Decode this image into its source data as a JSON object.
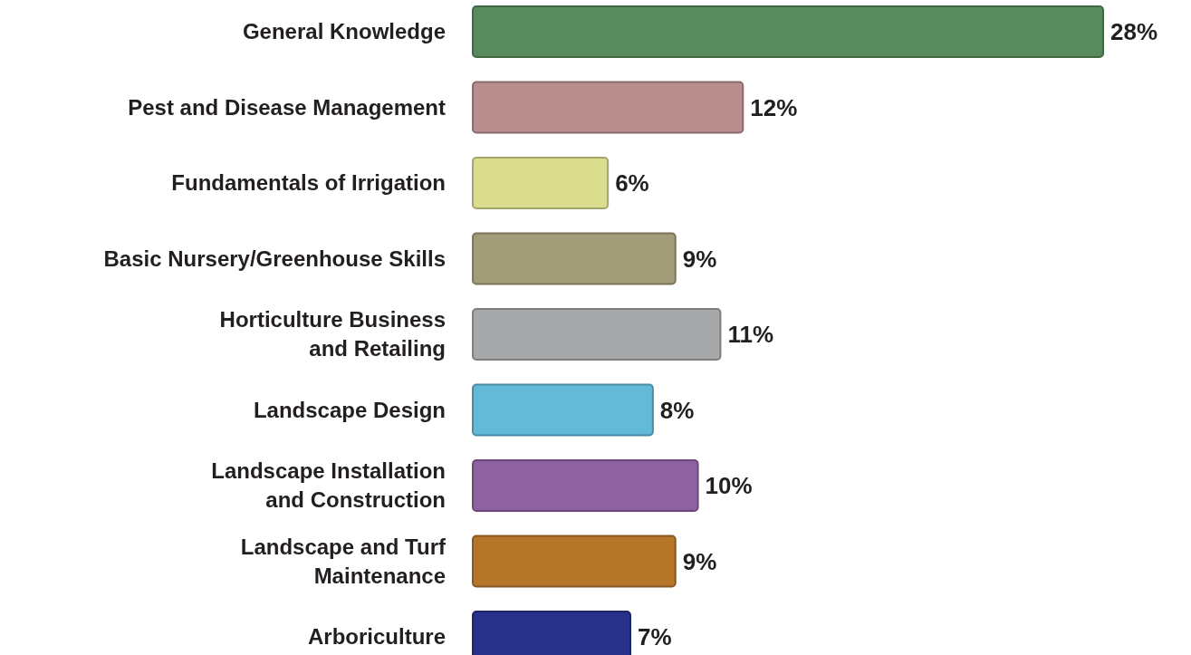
{
  "chart_data": {
    "type": "bar",
    "orientation": "horizontal",
    "categories": [
      "General Knowledge",
      "Pest and Disease Management",
      "Fundamentals of Irrigation",
      "Basic Nursery/Greenhouse Skills",
      "Horticulture Business\nand Retailing",
      "Landscape Design",
      "Landscape Installation\nand Construction",
      "Landscape and Turf\nMaintenance",
      "Arboriculture"
    ],
    "values": [
      28,
      12,
      6,
      9,
      11,
      8,
      10,
      9,
      7
    ],
    "colors": [
      "#578a5c",
      "#b88e8e",
      "#dbdd8e",
      "#a39c78",
      "#a7a8aa",
      "#62b9d8",
      "#8e62a0",
      "#b5762a",
      "#27318a"
    ],
    "value_labels": [
      "28%",
      "12%",
      "6%",
      "9%",
      "11%",
      "8%",
      "10%",
      "9%",
      "7%"
    ]
  }
}
